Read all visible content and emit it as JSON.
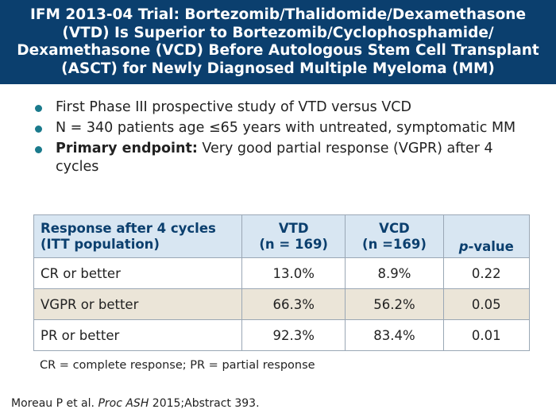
{
  "slide": {
    "title": "IFM 2013-04 Trial: Bortezomib/Thalidomide/Dexamethasone (VTD) Is Superior to Bortezomib/Cyclophosphamide/ Dexamethasone (VCD) Before Autologous Stem Cell Transplant (ASCT) for Newly Diagnosed Multiple Myeloma (MM)",
    "colors": {
      "title_bar": "#0b3f6e",
      "bullet": "#1a7a8c",
      "table_header": "#d8e6f2",
      "shaded_row": "#ebe5d8"
    }
  },
  "bullets": [
    {
      "bold": "",
      "text": "First Phase III prospective study of VTD versus VCD"
    },
    {
      "bold": "",
      "text": "N = 340 patients age ≤65 years with untreated, symptomatic MM"
    },
    {
      "bold": "Primary endpoint:",
      "text": " Very good partial response (VGPR) after 4 cycles"
    }
  ],
  "table": {
    "headers": {
      "response_line1": "Response after 4 cycles",
      "response_line2": "(ITT population)",
      "vtd_line1": "VTD",
      "vtd_line2": "(n = 169)",
      "vcd_line1": "VCD",
      "vcd_line2": "(n =169)",
      "pvalue_italic": "p",
      "pvalue_rest": "-value"
    },
    "rows": [
      {
        "label": "CR or better",
        "vtd": "13.0%",
        "vcd": "8.9%",
        "p": "0.22"
      },
      {
        "label": "VGPR or better",
        "vtd": "66.3%",
        "vcd": "56.2%",
        "p": "0.05"
      },
      {
        "label": "PR or better",
        "vtd": "92.3%",
        "vcd": "83.4%",
        "p": "0.01"
      }
    ]
  },
  "footnote": "CR = complete response; PR = partial response",
  "reference": {
    "authors": "Moreau P et al. ",
    "journal": "Proc ASH",
    "rest": " 2015;Abstract 393."
  }
}
